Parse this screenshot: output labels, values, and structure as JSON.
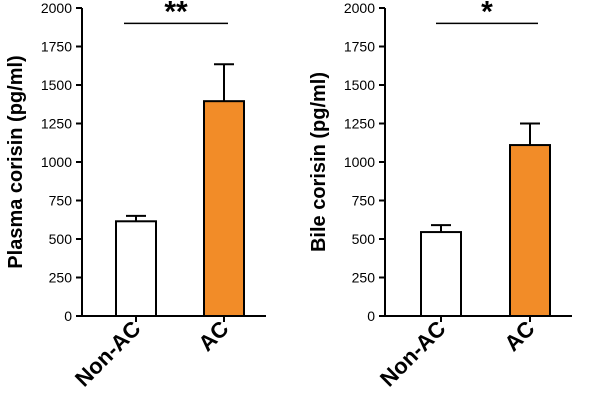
{
  "colors": {
    "ac_bar": "#F28C28",
    "non_ac_bar": "#FFFFFF",
    "axis": "#000000"
  },
  "chart_data": [
    {
      "type": "bar",
      "title": "",
      "xlabel": "",
      "ylabel": "Plasma corisin (pg/ml)",
      "ylim": [
        0,
        2000
      ],
      "yticks": [
        0,
        250,
        500,
        750,
        1000,
        1250,
        1500,
        1750,
        2000
      ],
      "ytick_labels": [
        "0",
        "250",
        "500",
        "750",
        "1000",
        "1250",
        "1500",
        "1750",
        "2000"
      ],
      "categories": [
        "Non-AC",
        "AC"
      ],
      "values": [
        615,
        1395
      ],
      "error_upper": [
        650,
        1635
      ],
      "bar_colors": [
        "#FFFFFF",
        "#F28C28"
      ],
      "significance": "**",
      "grid": false
    },
    {
      "type": "bar",
      "title": "",
      "xlabel": "",
      "ylabel": "Bile corisin (pg/ml)",
      "ylim": [
        0,
        2000
      ],
      "yticks": [
        0,
        250,
        500,
        750,
        1000,
        1250,
        1500,
        1750,
        2000
      ],
      "ytick_labels": [
        "0",
        "250",
        "500",
        "750",
        "1000",
        "1250",
        "1500",
        "1750",
        "2000"
      ],
      "categories": [
        "Non-AC",
        "AC"
      ],
      "values": [
        545,
        1110
      ],
      "error_upper": [
        590,
        1250
      ],
      "bar_colors": [
        "#FFFFFF",
        "#F28C28"
      ],
      "significance": "*",
      "grid": false
    }
  ]
}
